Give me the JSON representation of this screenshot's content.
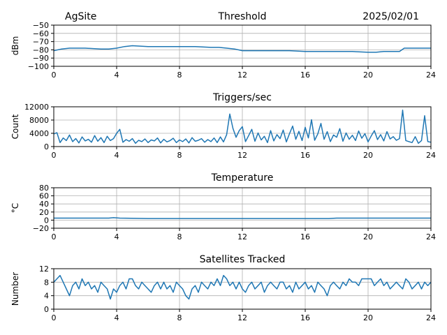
{
  "header": {
    "site": "AgSite",
    "date": "2025/02/01"
  },
  "colors": {
    "series": "#1f77b4",
    "grid": "#b0b0b0",
    "axis": "#000000"
  },
  "chart_data": [
    {
      "type": "line",
      "title": "Threshold",
      "xlabel": "",
      "ylabel": "dBm",
      "xlim": [
        0,
        24
      ],
      "ylim": [
        -100,
        -50
      ],
      "xticks": [
        0,
        4,
        8,
        12,
        16,
        20,
        24
      ],
      "yticks": [
        -100,
        -90,
        -80,
        -70,
        -60,
        -50
      ],
      "ytick_labels": [
        "−100",
        "−90",
        "−80",
        "−70",
        "−60",
        "−50"
      ],
      "grid": true,
      "series": [
        {
          "x": [
            0,
            0.5,
            1,
            2,
            3,
            3.5,
            4,
            4.5,
            5,
            6,
            7,
            8,
            9,
            10,
            10.5,
            11,
            11.5,
            12,
            12.5,
            13,
            14,
            15,
            16,
            17,
            18,
            19,
            20,
            20.5,
            21,
            21.5,
            22,
            22.3,
            23,
            24
          ],
          "y": [
            -81,
            -79,
            -78,
            -78,
            -79,
            -79,
            -78,
            -76,
            -75,
            -76,
            -76,
            -76,
            -76,
            -77,
            -77,
            -78,
            -79,
            -81,
            -81,
            -81,
            -81,
            -81,
            -82,
            -82,
            -82,
            -82,
            -83,
            -83,
            -82,
            -82,
            -82,
            -78,
            -78,
            -78
          ]
        }
      ]
    },
    {
      "type": "line",
      "title": "Triggers/sec",
      "xlabel": "",
      "ylabel": "Count",
      "xlim": [
        0,
        24
      ],
      "ylim": [
        0,
        12000
      ],
      "xticks": [
        0,
        4,
        8,
        12,
        16,
        20,
        24
      ],
      "yticks": [
        0,
        4000,
        8000,
        12000
      ],
      "ytick_labels": [
        "0",
        "4000",
        "8000",
        "12000"
      ],
      "grid": true,
      "series": [
        {
          "x": [
            0,
            0.2,
            0.4,
            0.6,
            0.8,
            1.0,
            1.2,
            1.4,
            1.6,
            1.8,
            2.0,
            2.2,
            2.4,
            2.6,
            2.8,
            3.0,
            3.2,
            3.4,
            3.6,
            3.8,
            4.0,
            4.2,
            4.4,
            4.6,
            4.8,
            5.0,
            5.2,
            5.4,
            5.6,
            5.8,
            6.0,
            6.2,
            6.4,
            6.6,
            6.8,
            7.0,
            7.2,
            7.4,
            7.6,
            7.8,
            8.0,
            8.2,
            8.4,
            8.6,
            8.8,
            9.0,
            9.2,
            9.4,
            9.6,
            9.8,
            10.0,
            10.2,
            10.4,
            10.6,
            10.8,
            11.0,
            11.2,
            11.4,
            11.6,
            11.8,
            12.0,
            12.2,
            12.4,
            12.6,
            12.8,
            13.0,
            13.2,
            13.4,
            13.6,
            13.8,
            14.0,
            14.2,
            14.4,
            14.6,
            14.8,
            15.0,
            15.2,
            15.4,
            15.6,
            15.8,
            16.0,
            16.2,
            16.4,
            16.6,
            16.8,
            17.0,
            17.2,
            17.4,
            17.6,
            17.8,
            18.0,
            18.2,
            18.4,
            18.6,
            18.8,
            19.0,
            19.2,
            19.4,
            19.6,
            19.8,
            20.0,
            20.2,
            20.4,
            20.6,
            20.8,
            21.0,
            21.2,
            21.4,
            21.6,
            21.8,
            22.0,
            22.2,
            22.4,
            22.6,
            22.8,
            23.0,
            23.2,
            23.4,
            23.6,
            23.8,
            24.0
          ],
          "y": [
            3800,
            4200,
            1200,
            2600,
            1800,
            3500,
            1500,
            2400,
            1100,
            2900,
            1700,
            2200,
            1300,
            3300,
            1600,
            2700,
            1200,
            3100,
            1800,
            2400,
            4000,
            5200,
            1300,
            2100,
            1600,
            2400,
            1000,
            1900,
            1500,
            2300,
            1200,
            2000,
            1700,
            2600,
            1100,
            2200,
            1400,
            1800,
            2500,
            1200,
            2000,
            1500,
            2300,
            1100,
            2700,
            1600,
            1900,
            2400,
            1300,
            2100,
            1500,
            2600,
            1200,
            2900,
            1400,
            3600,
            9800,
            5500,
            2800,
            4800,
            6000,
            1500,
            3300,
            5200,
            1600,
            4100,
            2000,
            3100,
            1200,
            4800,
            1700,
            3600,
            2400,
            5000,
            1400,
            3900,
            6200,
            2200,
            4600,
            1800,
            5800,
            2600,
            8100,
            1900,
            3800,
            7000,
            2200,
            4500,
            1500,
            3500,
            2800,
            5400,
            1600,
            4100,
            2200,
            3400,
            1800,
            4700,
            2500,
            3900,
            1400,
            3200,
            4800,
            2100,
            3600,
            1700,
            4500,
            2300,
            3000,
            1900,
            2400,
            11000,
            1800,
            1500,
            1200,
            3000,
            1000,
            1800,
            9300,
            1500,
            1300
          ]
        }
      ]
    },
    {
      "type": "line",
      "title": "Temperature",
      "xlabel": "",
      "ylabel": "°C",
      "xlim": [
        0,
        24
      ],
      "ylim": [
        -20,
        80
      ],
      "xticks": [
        0,
        4,
        8,
        12,
        16,
        20,
        24
      ],
      "yticks": [
        -20,
        0,
        20,
        40,
        60,
        80
      ],
      "ytick_labels": [
        "−20",
        "0",
        "20",
        "40",
        "60",
        "80"
      ],
      "grid": true,
      "series": [
        {
          "x": [
            0,
            3.5,
            3.8,
            4.2,
            6,
            8,
            10,
            12,
            14,
            16,
            17.5,
            18,
            18.5,
            20,
            22,
            24
          ],
          "y": [
            5,
            5,
            6,
            5,
            4,
            4,
            4,
            4,
            4,
            4,
            4,
            5,
            5,
            5,
            5,
            5
          ]
        }
      ]
    },
    {
      "type": "line",
      "title": "Satellites Tracked",
      "xlabel": "",
      "ylabel": "Number",
      "xlim": [
        0,
        24
      ],
      "ylim": [
        0,
        12
      ],
      "xticks": [
        0,
        4,
        8,
        12,
        16,
        20,
        24
      ],
      "yticks": [
        0,
        4,
        8,
        12
      ],
      "ytick_labels": [
        "0",
        "4",
        "8",
        "12"
      ],
      "grid": true,
      "series": [
        {
          "x": [
            0,
            0.2,
            0.4,
            0.6,
            0.8,
            1.0,
            1.2,
            1.4,
            1.6,
            1.8,
            2.0,
            2.2,
            2.4,
            2.6,
            2.8,
            3.0,
            3.2,
            3.4,
            3.6,
            3.8,
            4.0,
            4.2,
            4.4,
            4.6,
            4.8,
            5.0,
            5.2,
            5.4,
            5.6,
            5.8,
            6.0,
            6.2,
            6.4,
            6.6,
            6.8,
            7.0,
            7.2,
            7.4,
            7.6,
            7.8,
            8.0,
            8.2,
            8.4,
            8.6,
            8.8,
            9.0,
            9.2,
            9.4,
            9.6,
            9.8,
            10.0,
            10.2,
            10.4,
            10.6,
            10.8,
            11.0,
            11.2,
            11.4,
            11.6,
            11.8,
            12.0,
            12.2,
            12.4,
            12.6,
            12.8,
            13.0,
            13.2,
            13.4,
            13.6,
            13.8,
            14.0,
            14.2,
            14.4,
            14.6,
            14.8,
            15.0,
            15.2,
            15.4,
            15.6,
            15.8,
            16.0,
            16.2,
            16.4,
            16.6,
            16.8,
            17.0,
            17.2,
            17.4,
            17.6,
            17.8,
            18.0,
            18.2,
            18.4,
            18.6,
            18.8,
            19.0,
            19.2,
            19.4,
            19.6,
            19.8,
            20.0,
            20.2,
            20.4,
            20.6,
            20.8,
            21.0,
            21.2,
            21.4,
            21.6,
            21.8,
            22.0,
            22.2,
            22.4,
            22.6,
            22.8,
            23.0,
            23.2,
            23.4,
            23.6,
            23.8,
            24.0
          ],
          "y": [
            8,
            9,
            10,
            8,
            6,
            4,
            7,
            8,
            6,
            9,
            7,
            8,
            6,
            7,
            5,
            8,
            7,
            6,
            3,
            6,
            5,
            7,
            8,
            6,
            9,
            9,
            7,
            6,
            8,
            7,
            6,
            5,
            7,
            8,
            6,
            8,
            6,
            7,
            5,
            8,
            7,
            6,
            4,
            3,
            6,
            7,
            5,
            8,
            7,
            6,
            8,
            7,
            9,
            7,
            10,
            9,
            7,
            8,
            6,
            8,
            6,
            5,
            7,
            8,
            6,
            7,
            8,
            5,
            7,
            8,
            7,
            6,
            8,
            8,
            6,
            7,
            5,
            8,
            6,
            7,
            8,
            6,
            7,
            5,
            8,
            7,
            6,
            4,
            7,
            8,
            7,
            6,
            8,
            7,
            9,
            8,
            8,
            7,
            9,
            9,
            9,
            9,
            7,
            8,
            9,
            7,
            8,
            6,
            7,
            8,
            7,
            6,
            9,
            8,
            6,
            7,
            8,
            6,
            8,
            7,
            8
          ]
        }
      ]
    }
  ]
}
